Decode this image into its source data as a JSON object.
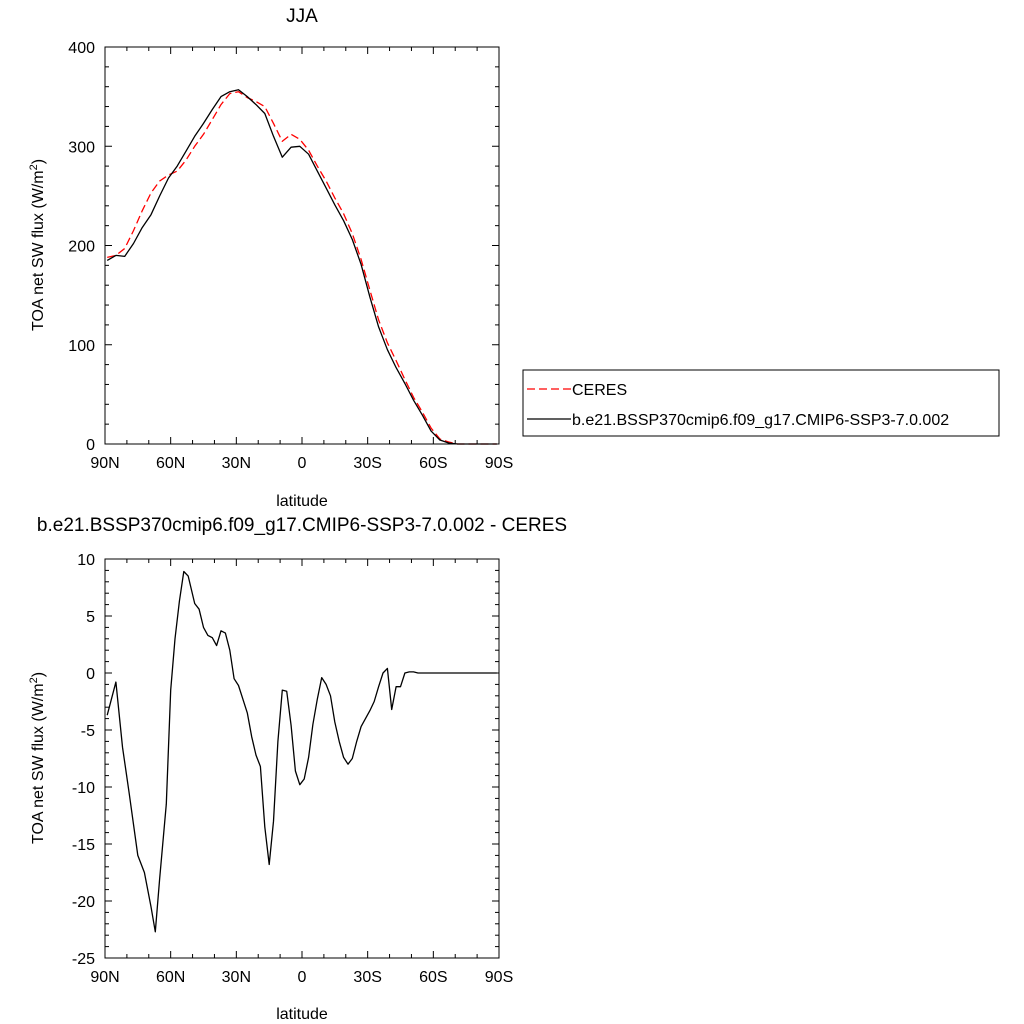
{
  "chart_data": [
    {
      "type": "line",
      "title": "JJA",
      "xlabel": "latitude",
      "ylabel": "TOA net SW flux (W/m",
      "ylabel_sup": "2",
      "ylabel_close": ")",
      "xlim": [
        90,
        -90
      ],
      "ylim": [
        0,
        400
      ],
      "x_ticks": [
        90,
        60,
        30,
        0,
        -30,
        -60,
        -90
      ],
      "x_tick_labels": [
        "90N",
        "60N",
        "30N",
        "0",
        "30S",
        "60S",
        "90S"
      ],
      "y_ticks": [
        0,
        100,
        200,
        300,
        400
      ],
      "y_tick_labels": [
        "0",
        "100",
        "200",
        "300",
        "400"
      ],
      "grid": false,
      "legend_position": "right",
      "series": [
        {
          "name": "CERES",
          "color": "#ff0000",
          "dash": "dashed",
          "x": [
            89,
            85,
            81,
            77,
            73,
            69,
            65,
            61,
            57,
            53,
            49,
            45,
            41,
            37,
            33,
            29,
            25,
            21,
            17,
            13,
            9,
            5,
            1,
            -3,
            -7,
            -11,
            -15,
            -19,
            -23,
            -27,
            -31,
            -35,
            -39,
            -43,
            -47,
            -51,
            -55,
            -59,
            -63,
            -67,
            -71,
            -75,
            -79,
            -83,
            -87,
            -89
          ],
          "values": [
            188,
            190,
            197,
            215,
            235,
            253,
            265,
            271,
            275,
            286,
            300,
            312,
            327,
            342,
            353,
            355,
            349,
            345,
            340,
            323,
            305,
            312,
            307,
            296,
            280,
            265,
            248,
            232,
            212,
            186,
            155,
            125,
            102,
            84,
            65,
            47,
            32,
            16,
            5,
            2,
            0,
            0,
            0,
            0,
            0,
            0
          ]
        },
        {
          "name": "b.e21.BSSP370cmip6.f09_g17.CMIP6-SSP3-7.0.002",
          "color": "#000000",
          "dash": "solid",
          "x": [
            89,
            85,
            81,
            77,
            73,
            69,
            65,
            61,
            57,
            53,
            49,
            45,
            41,
            37,
            33,
            29,
            25,
            21,
            17,
            13,
            9,
            5,
            1,
            -3,
            -7,
            -11,
            -15,
            -19,
            -23,
            -27,
            -31,
            -35,
            -39,
            -43,
            -47,
            -51,
            -55,
            -59,
            -63,
            -67,
            -71,
            -75,
            -79,
            -83,
            -87,
            -89
          ],
          "values": [
            185,
            190,
            189,
            202,
            218,
            231,
            250,
            268,
            280,
            295,
            310,
            323,
            337,
            350,
            355,
            357,
            350,
            342,
            333,
            310,
            289,
            299,
            300,
            292,
            275,
            258,
            241,
            225,
            206,
            181,
            148,
            118,
            95,
            77,
            61,
            44,
            29,
            13,
            4,
            1,
            0,
            0,
            0,
            0,
            0,
            0
          ]
        }
      ]
    },
    {
      "type": "line",
      "title": "b.e21.BSSP370cmip6.f09_g17.CMIP6-SSP3-7.0.002 - CERES",
      "xlabel": "latitude",
      "ylabel": "TOA net SW flux (W/m",
      "ylabel_sup": "2",
      "ylabel_close": ")",
      "xlim": [
        90,
        -90
      ],
      "ylim": [
        -25,
        10
      ],
      "x_ticks": [
        90,
        60,
        30,
        0,
        -30,
        -60,
        -90
      ],
      "x_tick_labels": [
        "90N",
        "60N",
        "30N",
        "0",
        "30S",
        "60S",
        "90S"
      ],
      "y_ticks": [
        10,
        5,
        0,
        -5,
        -10,
        -15,
        -20,
        -25
      ],
      "y_tick_labels": [
        "10",
        "5",
        "0",
        "-5",
        "-10",
        "-15",
        "-20",
        "-25"
      ],
      "grid": false,
      "series": [
        {
          "color": "#000000",
          "dash": "solid",
          "x": [
            89,
            85,
            82,
            79,
            75,
            72,
            69,
            67,
            65,
            62,
            60,
            58,
            56,
            54,
            52,
            49,
            47,
            45,
            43,
            41,
            39,
            37,
            35,
            33,
            31,
            29,
            27,
            25,
            23,
            21,
            19,
            17,
            15,
            13,
            11,
            9,
            7,
            5,
            3,
            1,
            -1,
            -3,
            -5,
            -7,
            -9,
            -11,
            -13,
            -15,
            -17,
            -19,
            -21,
            -23,
            -25,
            -27,
            -29,
            -31,
            -33,
            -35,
            -37,
            -39,
            -41,
            -43,
            -45,
            -47,
            -49,
            -51,
            -53,
            -55,
            -57,
            -59,
            -61,
            -63,
            -65,
            -67,
            -69,
            -71,
            -73,
            -75,
            -77,
            -79,
            -81,
            -83,
            -85,
            -87,
            -89
          ],
          "values": [
            -3.7,
            -0.8,
            -6.5,
            -10.5,
            -16,
            -17.5,
            -20.5,
            -22.7,
            -18,
            -11.5,
            -1.5,
            3,
            6.3,
            8.9,
            8.5,
            6.1,
            5.6,
            4,
            3.3,
            3.1,
            2.4,
            3.7,
            3.5,
            2,
            -0.5,
            -1.1,
            -2.3,
            -3.5,
            -5.6,
            -7.2,
            -8.2,
            -13.5,
            -16.8,
            -13,
            -6,
            -1.5,
            -1.6,
            -4.6,
            -8.6,
            -9.8,
            -9.3,
            -7.4,
            -4.5,
            -2.3,
            -0.4,
            -1,
            -2,
            -4.3,
            -6,
            -7.4,
            -8,
            -7.5,
            -6,
            -4.7,
            -4,
            -3.3,
            -2.5,
            -1.2,
            0,
            0.4,
            -3.2,
            -1.2,
            -1.2,
            0,
            0.1,
            0.1,
            0,
            0,
            0,
            0,
            0,
            0,
            0,
            0,
            0,
            0,
            0,
            0,
            0,
            0,
            0,
            0,
            0,
            0,
            0
          ]
        }
      ]
    }
  ]
}
